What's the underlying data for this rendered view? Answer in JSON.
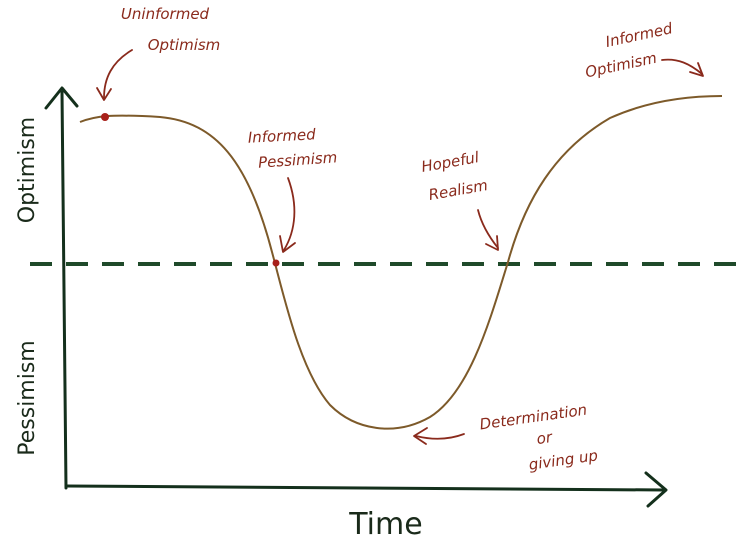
{
  "diagram": {
    "axis_labels": {
      "y_positive": "Optimism",
      "y_negative": "Pessimism",
      "x": "Time"
    },
    "annotations": {
      "uninformed_optimism": [
        "Uninformed",
        "Optimism"
      ],
      "informed_pessimism": [
        "Informed",
        "Pessimism"
      ],
      "hopeful_realism": [
        "Hopeful",
        "Realism"
      ],
      "determination": [
        "Determination",
        "or",
        "giving up"
      ],
      "informed_optimism": [
        "Informed",
        "Optimism"
      ]
    }
  },
  "colors": {
    "axis": "#14301c",
    "baseline": "#1f4a2a",
    "curve": "#7d5a2a",
    "annotation": "#8a2a1c",
    "marker": "#a8201a"
  }
}
